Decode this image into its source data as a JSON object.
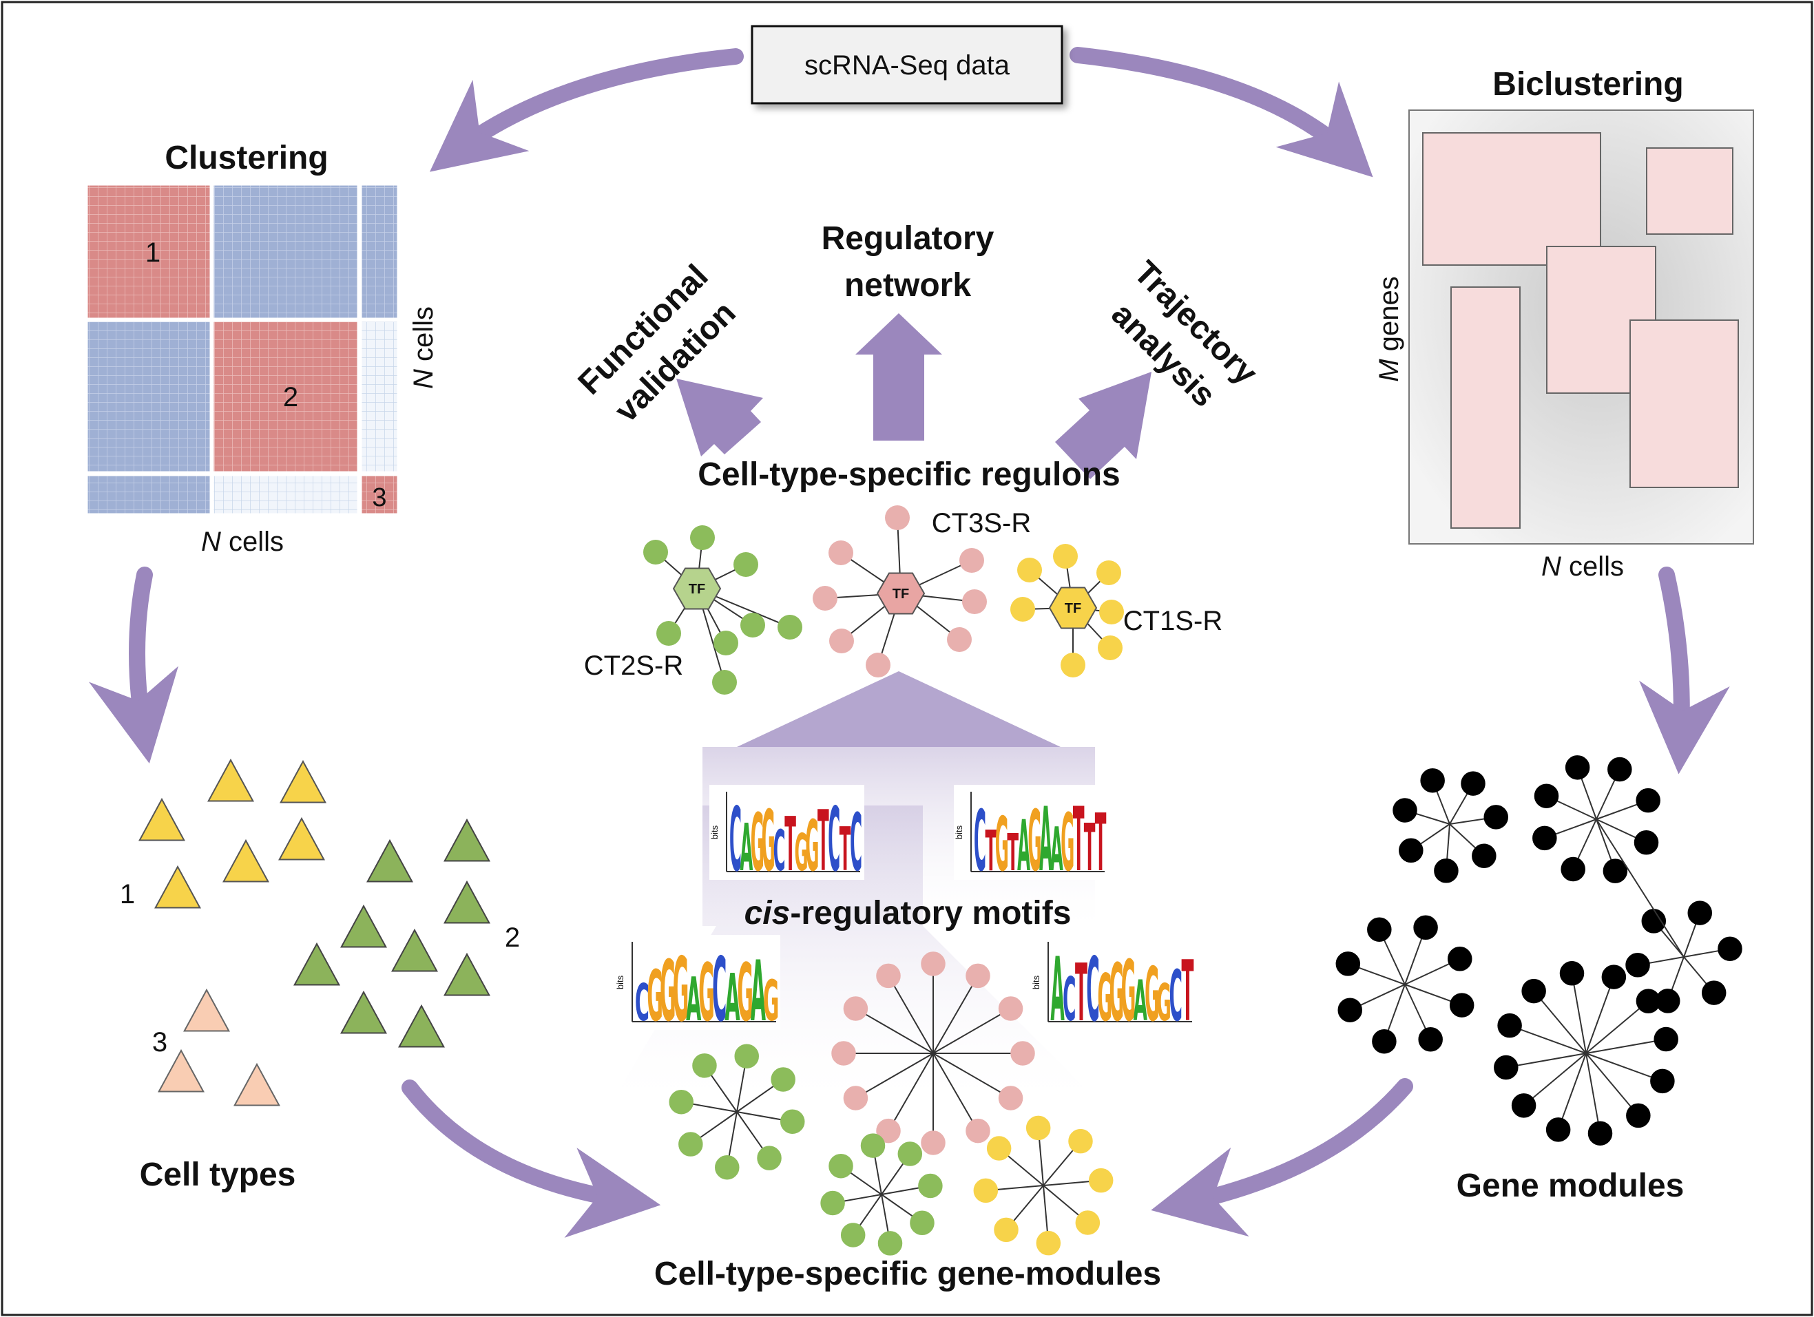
{
  "source": {
    "label": "scRNA-Seq data"
  },
  "clustering": {
    "title": "Clustering",
    "x_axis": {
      "italic": "N",
      "text": " cells"
    },
    "y_axis": {
      "italic": "N",
      "text": " cells"
    },
    "cluster_labels": [
      "1",
      "2",
      "3"
    ]
  },
  "biclustering": {
    "title": "Biclustering",
    "x_axis": {
      "italic": "N",
      "text": " cells"
    },
    "y_axis": {
      "italic": "M",
      "text": " genes"
    }
  },
  "cell_types": {
    "title": "Cell types",
    "labels": [
      "1",
      "2",
      "3"
    ]
  },
  "gene_modules": {
    "title": "Gene modules"
  },
  "gene_modules_ct": {
    "title": "Cell-type-specific gene-modules"
  },
  "motifs": {
    "title_italic": "cis",
    "title_rest": "-regulatory motifs",
    "logos": [
      {
        "axis": "bits",
        "letters": "CAGGCTGGTCTC"
      },
      {
        "axis": "bits",
        "letters": "CTGTAGAAGTTT"
      },
      {
        "axis": "bits",
        "letters": "CGGGAGCAGAG"
      },
      {
        "axis": "bits",
        "letters": "ACTCGGGAGGCT"
      }
    ]
  },
  "regulons": {
    "title": "Cell-type-specific regulons",
    "hub_label": "TF",
    "items": [
      {
        "label": "CT2S-R"
      },
      {
        "label": "CT3S-R"
      },
      {
        "label": "CT1S-R"
      }
    ]
  },
  "outputs": {
    "functional": [
      "Functional",
      "validation"
    ],
    "network": [
      "Regulatory",
      "network"
    ],
    "trajectory": [
      "Trajectory",
      "analysis"
    ]
  },
  "colors": {
    "arrow": "#9b87bd",
    "cluster_red": "#d98a88",
    "cluster_blue": "#9fb0d4",
    "cluster_empty": "#eaf0f8",
    "bicluster_fill": "#f7dcdc",
    "green": "#8cbc5b",
    "pink": "#e8b0ae",
    "yellow": "#f7d34a",
    "black": "#000000"
  }
}
